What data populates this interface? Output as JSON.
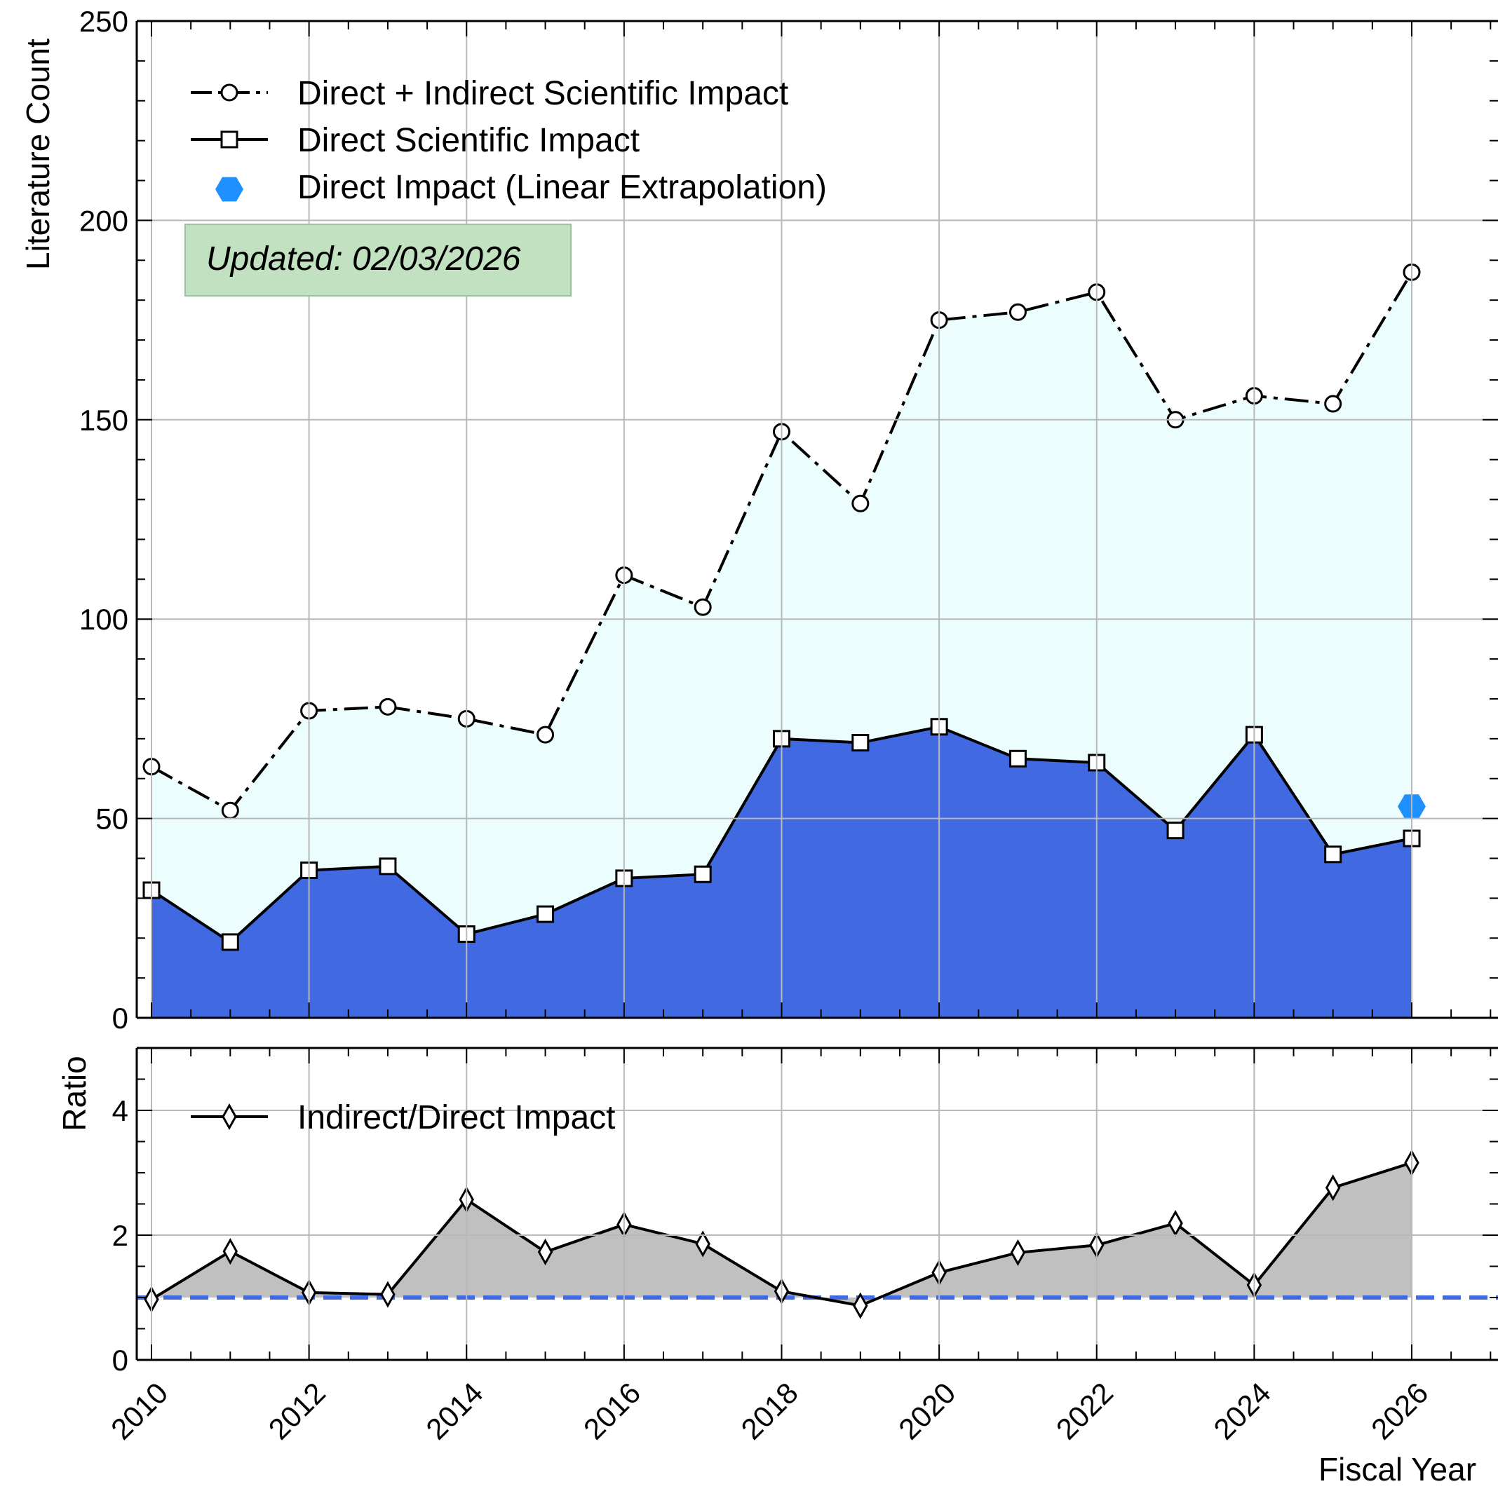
{
  "chart_data": [
    {
      "type": "line",
      "ylabel": "Literature Count",
      "ylim": [
        0,
        250
      ],
      "yticks": [
        0,
        50,
        100,
        150,
        200,
        250
      ],
      "x": [
        2010,
        2011,
        2012,
        2013,
        2014,
        2015,
        2016,
        2017,
        2018,
        2019,
        2020,
        2021,
        2022,
        2023,
        2024,
        2025,
        2026
      ],
      "series": [
        {
          "name": "Direct + Indirect Scientific Impact",
          "style": "dash-dot line, open circles, light cyan fill",
          "fill_color": "#ecfdfd",
          "values": [
            63,
            52,
            77,
            78,
            75,
            71,
            111,
            103,
            147,
            129,
            175,
            177,
            182,
            150,
            156,
            154,
            187
          ]
        },
        {
          "name": "Direct Scientific Impact",
          "style": "solid line, open squares, royal blue fill",
          "fill_color": "#4169e1",
          "values": [
            32,
            19,
            37,
            38,
            21,
            26,
            35,
            36,
            70,
            69,
            73,
            65,
            64,
            47,
            71,
            41,
            45
          ]
        },
        {
          "name": "Direct Impact (Linear Extrapolation)",
          "style": "blue hexagon marker",
          "color": "#1e90ff",
          "points": [
            {
              "x": 2026,
              "y": 53
            }
          ]
        }
      ],
      "annotation": "Updated: 02/03/2026",
      "annotation_color": "#c1e1c1",
      "legend_position": "top-left",
      "grid": true
    },
    {
      "type": "line",
      "ylabel": "Ratio",
      "xlabel": "Fiscal Year",
      "ylim": [
        0,
        5
      ],
      "yticks": [
        0,
        2,
        4
      ],
      "x": [
        2010,
        2011,
        2012,
        2013,
        2014,
        2015,
        2016,
        2017,
        2018,
        2019,
        2020,
        2021,
        2022,
        2023,
        2024,
        2025,
        2026
      ],
      "xticks": [
        2010,
        2012,
        2014,
        2016,
        2018,
        2020,
        2022,
        2024,
        2026
      ],
      "series": [
        {
          "name": "Indirect/Direct Impact",
          "style": "solid line, open diamonds, grey fill",
          "fill_color": "#c0c0c0",
          "values": [
            0.97,
            1.74,
            1.08,
            1.05,
            2.57,
            1.73,
            2.17,
            1.86,
            1.1,
            0.87,
            1.4,
            1.72,
            1.84,
            2.19,
            1.2,
            2.76,
            3.16
          ]
        }
      ],
      "reference_line": {
        "y": 1.0,
        "style": "dashed",
        "color": "#4169e1"
      },
      "legend_position": "top-left",
      "grid": true
    }
  ]
}
